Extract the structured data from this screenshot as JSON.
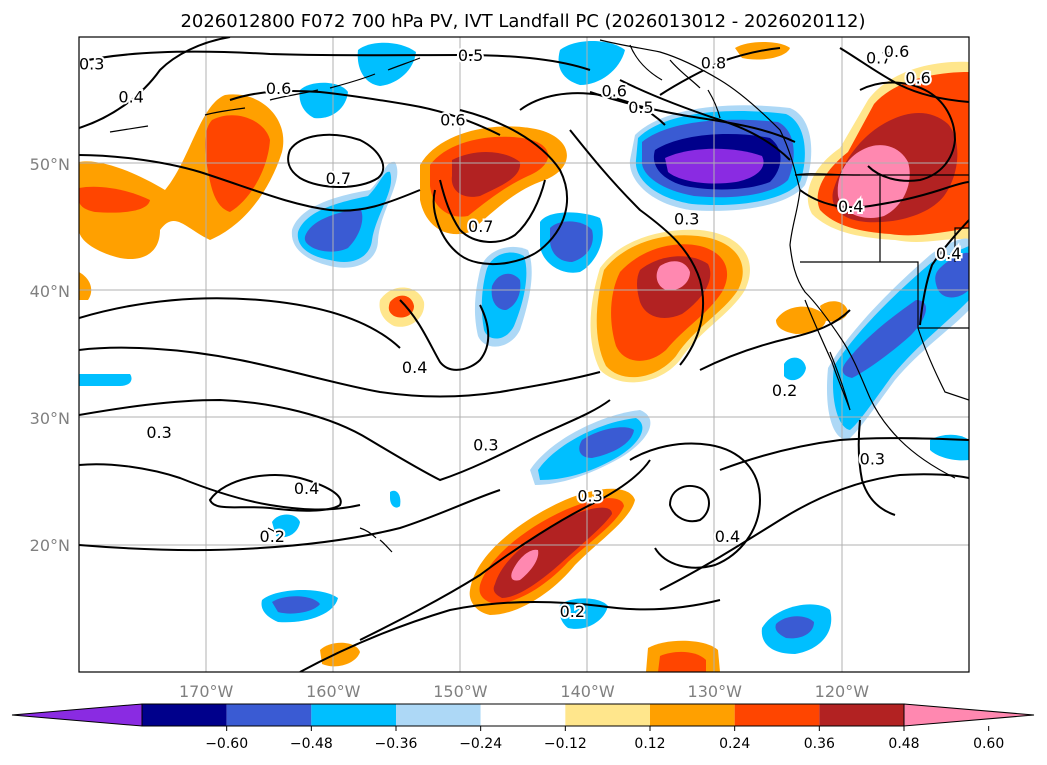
{
  "title": "2026012800 F072 700 hPa PV, IVT Landfall PC (2026013012 - 2026020112)",
  "map": {
    "lon_range": [
      -180,
      -110
    ],
    "lat_range": [
      10,
      60
    ],
    "lon_ticks": [
      {
        "label": "170°W",
        "lon": -170
      },
      {
        "label": "160°W",
        "lon": -160
      },
      {
        "label": "150°W",
        "lon": -150
      },
      {
        "label": "140°W",
        "lon": -140
      },
      {
        "label": "130°W",
        "lon": -130
      },
      {
        "label": "120°W",
        "lon": -120
      }
    ],
    "lat_ticks": [
      {
        "label": "20°N",
        "lat": 20
      },
      {
        "label": "30°N",
        "lat": 30
      },
      {
        "label": "40°N",
        "lat": 40
      },
      {
        "label": "50°N",
        "lat": 50
      }
    ]
  },
  "pv_contour_labels": [
    {
      "text": "0.5",
      "lon": -149.2,
      "lat": 58.6
    },
    {
      "text": "0.8",
      "lon": -130.1,
      "lat": 58.0
    },
    {
      "text": "0.7",
      "lon": -117.1,
      "lat": 58.4
    },
    {
      "text": "0.6",
      "lon": -115.7,
      "lat": 58.9
    },
    {
      "text": "0.6",
      "lon": -114.0,
      "lat": 56.8
    },
    {
      "text": "0.3",
      "lon": -179.0,
      "lat": 57.9
    },
    {
      "text": "0.4",
      "lon": -175.9,
      "lat": 55.3
    },
    {
      "text": "0.6",
      "lon": -164.3,
      "lat": 56.0
    },
    {
      "text": "0.6",
      "lon": -137.9,
      "lat": 55.8
    },
    {
      "text": "0.5",
      "lon": -135.8,
      "lat": 54.5
    },
    {
      "text": "0.6",
      "lon": -150.6,
      "lat": 53.5
    },
    {
      "text": "0.7",
      "lon": -159.6,
      "lat": 48.9
    },
    {
      "text": "0.7",
      "lon": -148.4,
      "lat": 45.1
    },
    {
      "text": "0.3",
      "lon": -132.2,
      "lat": 45.7
    },
    {
      "text": "0.4",
      "lon": -119.3,
      "lat": 46.7
    },
    {
      "text": "0.4",
      "lon": -111.6,
      "lat": 43.0
    },
    {
      "text": "0.4",
      "lon": -153.6,
      "lat": 34.0
    },
    {
      "text": "0.2",
      "lon": -124.5,
      "lat": 32.2
    },
    {
      "text": "0.3",
      "lon": -173.7,
      "lat": 28.9
    },
    {
      "text": "0.3",
      "lon": -148.0,
      "lat": 27.9
    },
    {
      "text": "0.3",
      "lon": -117.6,
      "lat": 26.8
    },
    {
      "text": "0.4",
      "lon": -162.1,
      "lat": 24.5
    },
    {
      "text": "0.3",
      "lon": -139.8,
      "lat": 23.9
    },
    {
      "text": "0.2",
      "lon": -164.8,
      "lat": 20.7
    },
    {
      "text": "0.4",
      "lon": -129.0,
      "lat": 20.7
    },
    {
      "text": "0.2",
      "lon": -141.2,
      "lat": 14.8
    }
  ],
  "colorbar": {
    "colors": [
      "#8a2be2",
      "#00008b",
      "#3a5bd3",
      "#00bfff",
      "#add8f6",
      "#ffffff",
      "#ffe68c",
      "#ffa000",
      "#ff4500",
      "#b22222",
      "#ff88b0"
    ],
    "tick_labels": [
      "−0.60",
      "−0.48",
      "−0.36",
      "−0.24",
      "−0.12",
      "0.12",
      "0.24",
      "0.36",
      "0.48",
      "0.60"
    ]
  }
}
